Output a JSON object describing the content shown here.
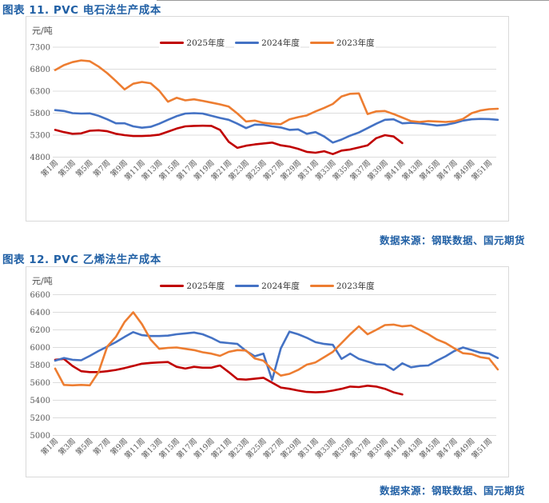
{
  "colors": {
    "accent_blue_text": "#2160A5",
    "series_2025": "#C00000",
    "series_2024": "#4472C4",
    "series_2023": "#ED7D31",
    "gridline": "#dcdcdc"
  },
  "chart_data": [
    {
      "type": "line",
      "title": "图表 11.  PVC 电石法生产成本",
      "unit_label": "元/吨",
      "source": "数据来源：钢联数据、国元期货",
      "grid": true,
      "legend_position": "top-center",
      "ylim": [
        4800,
        7300
      ],
      "yticks": [
        7300,
        6800,
        6300,
        5800,
        5300,
        4800
      ],
      "x_unit": "week",
      "x_tick_labels": [
        "第1周",
        "第3周",
        "第5周",
        "第7周",
        "第9周",
        "第11周",
        "第13周",
        "第15周",
        "第17周",
        "第19周",
        "第21周",
        "第23周",
        "第25周",
        "第27周",
        "第29周",
        "第31周",
        "第33周",
        "第35周",
        "第37周",
        "第39周",
        "第41周",
        "第43周",
        "第45周",
        "第47周",
        "第49周",
        "第51周"
      ],
      "series": [
        {
          "name": "2025年度",
          "color": "#C00000",
          "values": [
            5420,
            5370,
            5330,
            5340,
            5400,
            5410,
            5390,
            5330,
            5300,
            5280,
            5280,
            5290,
            5310,
            5380,
            5450,
            5500,
            5510,
            5515,
            5510,
            5420,
            5150,
            5010,
            5060,
            5090,
            5110,
            5130,
            5070,
            5040,
            4990,
            4920,
            4900,
            4935,
            4870,
            4950,
            4975,
            5020,
            5070,
            5230,
            5300,
            5270,
            5120
          ]
        },
        {
          "name": "2024年度",
          "color": "#4472C4",
          "values": [
            5870,
            5850,
            5800,
            5790,
            5795,
            5740,
            5660,
            5570,
            5570,
            5500,
            5470,
            5490,
            5560,
            5650,
            5730,
            5790,
            5800,
            5790,
            5740,
            5690,
            5650,
            5560,
            5460,
            5540,
            5535,
            5500,
            5475,
            5420,
            5430,
            5330,
            5370,
            5270,
            5130,
            5200,
            5290,
            5360,
            5460,
            5560,
            5650,
            5660,
            5570,
            5580,
            5570,
            5545,
            5520,
            5535,
            5575,
            5630,
            5660,
            5670,
            5665,
            5650
          ]
        },
        {
          "name": "2023年度",
          "color": "#ED7D31",
          "values": [
            6780,
            6890,
            6960,
            7000,
            6980,
            6860,
            6710,
            6530,
            6340,
            6470,
            6510,
            6480,
            6310,
            6060,
            6150,
            6090,
            6115,
            6080,
            6040,
            6000,
            5950,
            5790,
            5610,
            5630,
            5580,
            5560,
            5550,
            5660,
            5710,
            5750,
            5840,
            5920,
            6010,
            6180,
            6240,
            6250,
            5780,
            5840,
            5850,
            5780,
            5700,
            5620,
            5600,
            5620,
            5610,
            5600,
            5615,
            5670,
            5800,
            5860,
            5890,
            5900
          ]
        }
      ]
    },
    {
      "type": "line",
      "title": "图表 12.  PVC 乙烯法生产成本",
      "unit_label": "元/吨",
      "source": "数据来源：钢联数据、国元期货",
      "grid": true,
      "legend_position": "top-center",
      "ylim": [
        5000,
        6600
      ],
      "yticks": [
        6600,
        6400,
        6200,
        6000,
        5800,
        5600,
        5400,
        5200,
        5000
      ],
      "x_unit": "week",
      "x_tick_labels": [
        "第1周",
        "第3周",
        "第5周",
        "第7周",
        "第9周",
        "第11周",
        "第13周",
        "第15周",
        "第17周",
        "第19周",
        "第21周",
        "第23周",
        "第25周",
        "第27周",
        "第29周",
        "第31周",
        "第33周",
        "第35周",
        "第37周",
        "第39周",
        "第41周",
        "第43周",
        "第45周",
        "第47周",
        "第49周",
        "第51周"
      ],
      "series": [
        {
          "name": "2025年度",
          "color": "#C00000",
          "values": [
            5860,
            5870,
            5790,
            5730,
            5720,
            5720,
            5730,
            5745,
            5765,
            5790,
            5815,
            5825,
            5830,
            5835,
            5780,
            5760,
            5780,
            5770,
            5770,
            5795,
            5720,
            5640,
            5635,
            5645,
            5655,
            5600,
            5545,
            5530,
            5510,
            5495,
            5490,
            5495,
            5510,
            5530,
            5555,
            5550,
            5565,
            5555,
            5530,
            5490,
            5465
          ]
        },
        {
          "name": "2024年度",
          "color": "#4472C4",
          "values": [
            5850,
            5880,
            5860,
            5855,
            5905,
            5960,
            6010,
            6060,
            6120,
            6175,
            6140,
            6130,
            6130,
            6135,
            6150,
            6160,
            6170,
            6150,
            6110,
            6060,
            6050,
            6040,
            5960,
            5900,
            5930,
            5630,
            5990,
            6180,
            6150,
            6110,
            6060,
            6040,
            6030,
            5870,
            5930,
            5870,
            5840,
            5810,
            5805,
            5745,
            5820,
            5775,
            5790,
            5795,
            5850,
            5900,
            5960,
            6000,
            5970,
            5940,
            5930,
            5880
          ]
        },
        {
          "name": "2023年度",
          "color": "#ED7D31",
          "values": [
            5760,
            5575,
            5570,
            5575,
            5570,
            5720,
            6010,
            6120,
            6290,
            6400,
            6265,
            6090,
            5985,
            5995,
            6000,
            5985,
            5970,
            5945,
            5930,
            5905,
            5950,
            5970,
            5965,
            5875,
            5850,
            5750,
            5680,
            5700,
            5745,
            5805,
            5830,
            5890,
            5950,
            6050,
            6150,
            6240,
            6150,
            6200,
            6255,
            6260,
            6240,
            6250,
            6200,
            6150,
            6090,
            6050,
            5990,
            5935,
            5925,
            5890,
            5875,
            5750
          ]
        }
      ]
    }
  ]
}
